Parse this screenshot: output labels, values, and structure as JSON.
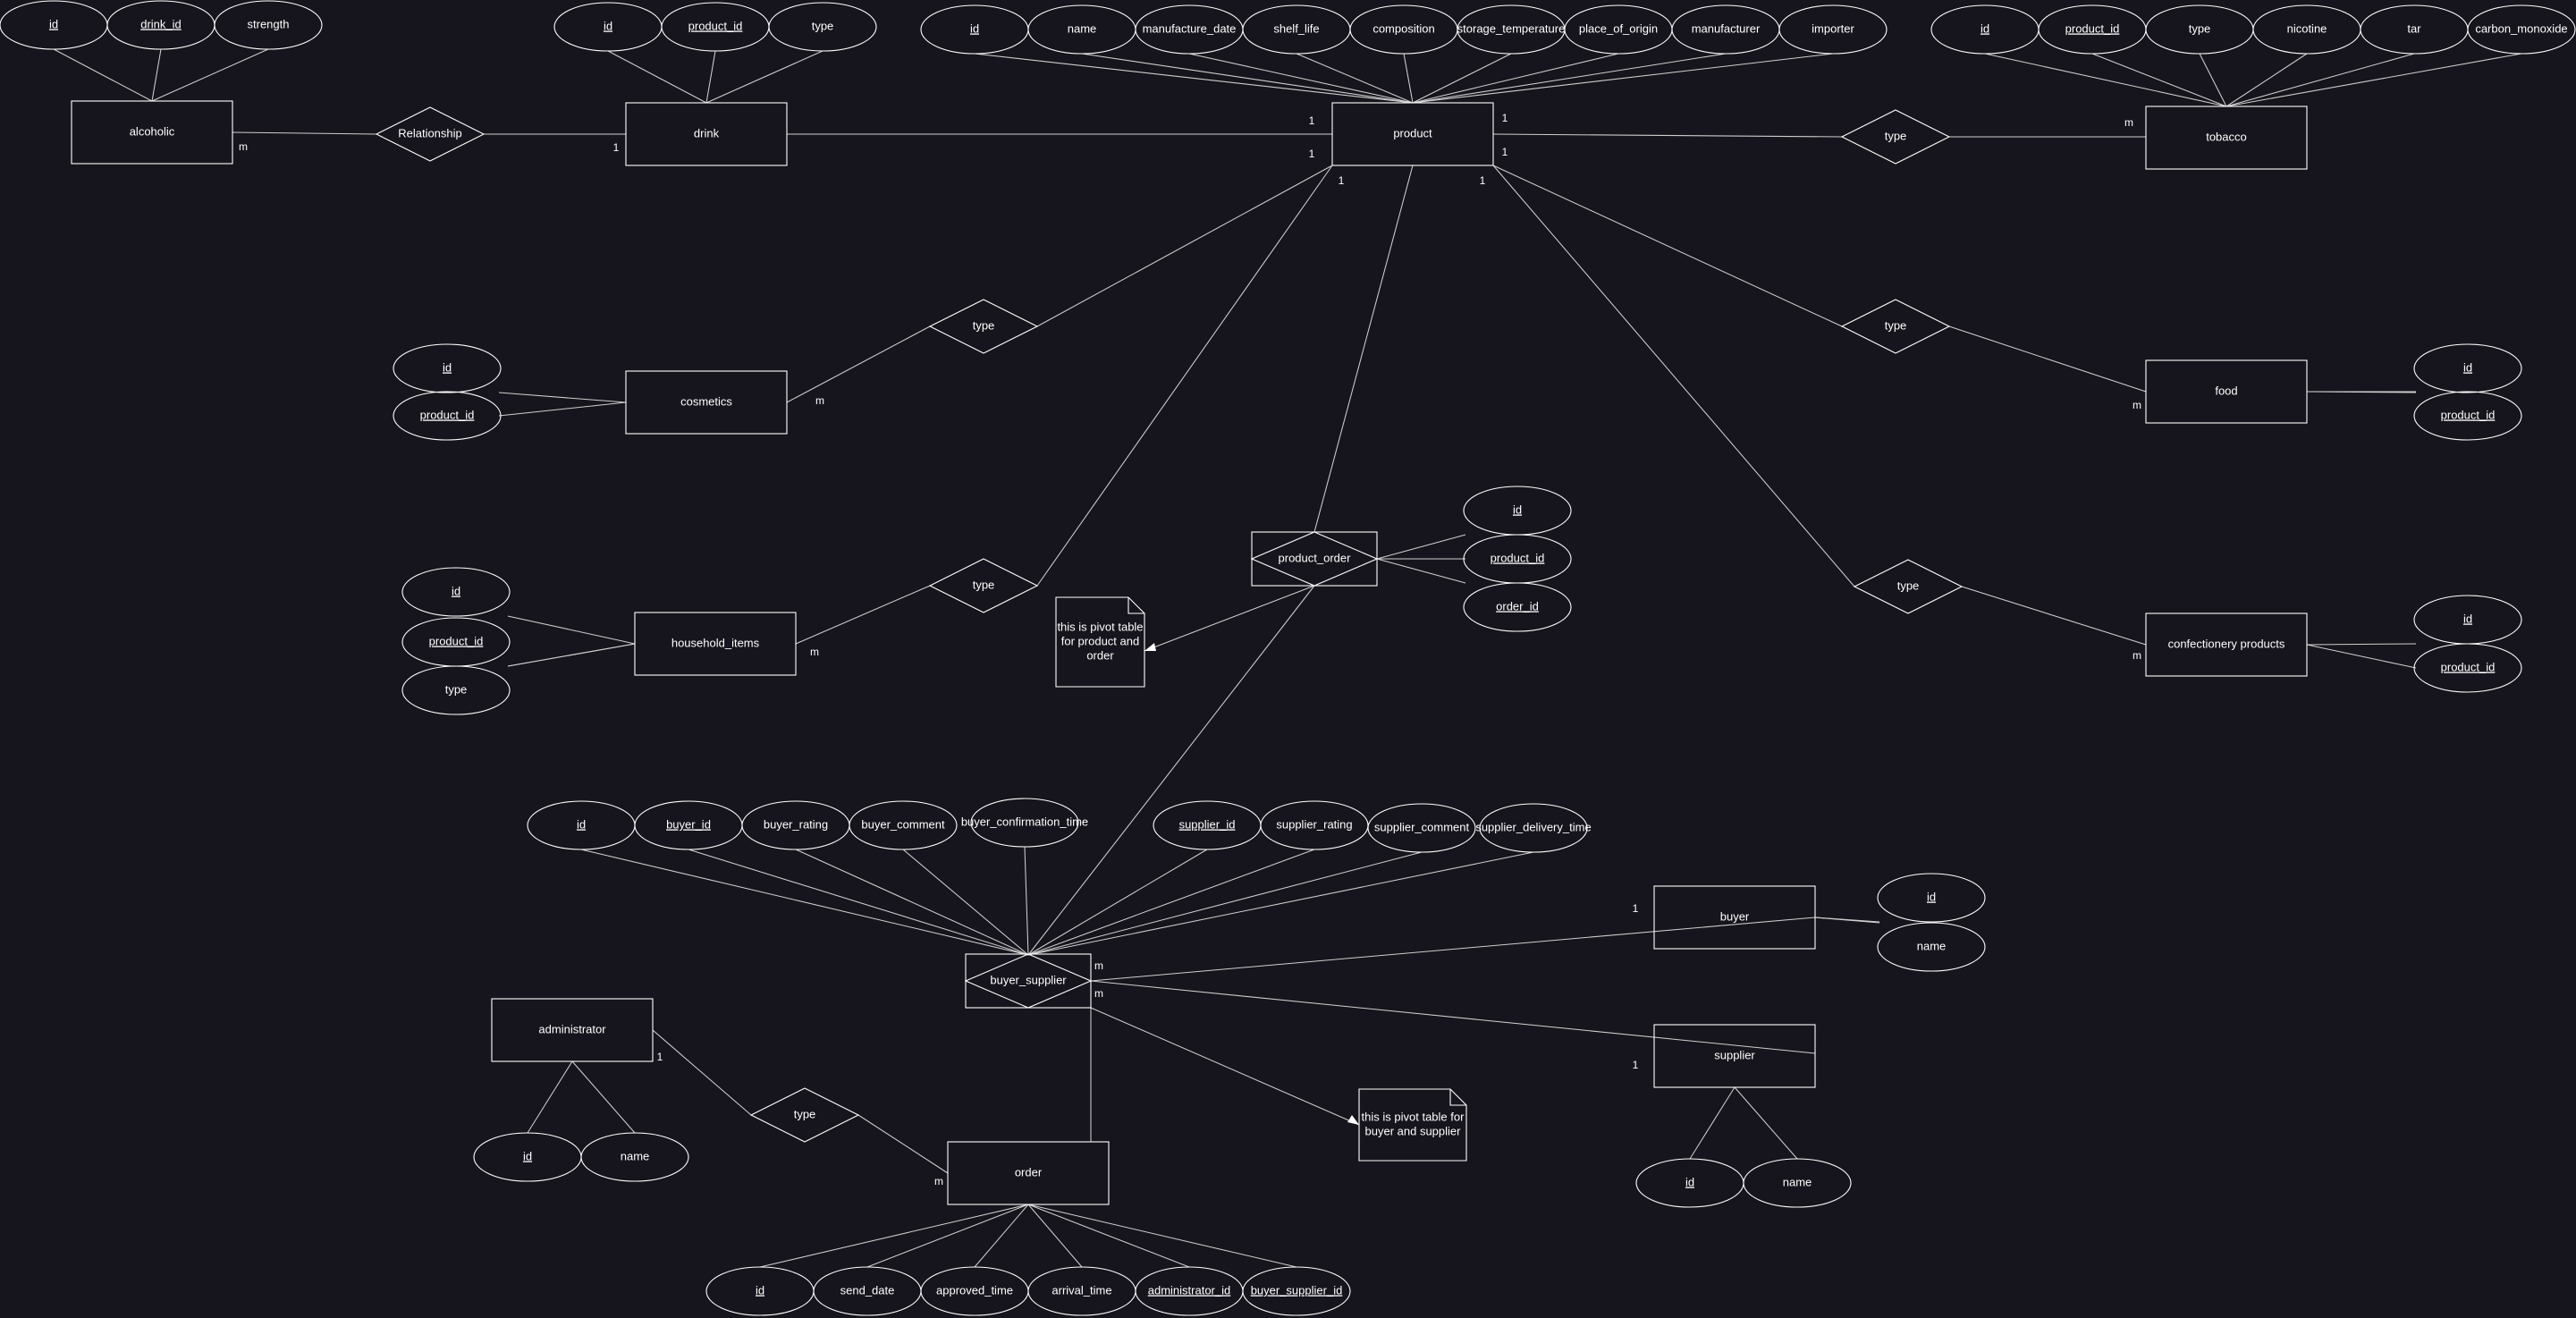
{
  "entities": {
    "alcoholic": "alcoholic",
    "drink": "drink",
    "product": "product",
    "tobacco": "tobacco",
    "cosmetics": "cosmetics",
    "food": "food",
    "household_items": "household_items",
    "confectionery": "confectionery products",
    "administrator": "administrator",
    "buyer": "buyer",
    "supplier": "supplier",
    "order": "order"
  },
  "relationships": {
    "alcoholic_drink": "Relationship",
    "product_tobacco": "type",
    "product_cosmetics": "type",
    "product_food": "type",
    "product_household": "type",
    "product_confectionery": "type",
    "product_order": "product_order",
    "buyer_supplier": "buyer_supplier",
    "admin_order": "type"
  },
  "attributes": {
    "alcoholic": [
      {
        "label": "id",
        "key": true
      },
      {
        "label": "drink_id",
        "key": true
      },
      {
        "label": "strength",
        "key": false
      }
    ],
    "drink": [
      {
        "label": "id",
        "key": true
      },
      {
        "label": "product_id",
        "key": true
      },
      {
        "label": "type",
        "key": false
      }
    ],
    "product": [
      {
        "label": "id",
        "key": true
      },
      {
        "label": "name",
        "key": false
      },
      {
        "label": "manufacture_date",
        "key": false
      },
      {
        "label": "shelf_life",
        "key": false
      },
      {
        "label": "composition",
        "key": false
      },
      {
        "label": "storage_temperature",
        "key": false
      },
      {
        "label": "place_of_origin",
        "key": false
      },
      {
        "label": "manufacturer",
        "key": false
      },
      {
        "label": "importer",
        "key": false
      }
    ],
    "tobacco": [
      {
        "label": "id",
        "key": true
      },
      {
        "label": "product_id",
        "key": true
      },
      {
        "label": "type",
        "key": false
      },
      {
        "label": "nicotine",
        "key": false
      },
      {
        "label": "tar",
        "key": false
      },
      {
        "label": "carbon_monoxide",
        "key": false
      }
    ],
    "cosmetics": [
      {
        "label": "id",
        "key": true
      },
      {
        "label": "product_id",
        "key": true
      }
    ],
    "food": [
      {
        "label": "id",
        "key": true
      },
      {
        "label": "product_id",
        "key": true
      }
    ],
    "household_items": [
      {
        "label": "id",
        "key": true
      },
      {
        "label": "product_id",
        "key": true
      },
      {
        "label": "type",
        "key": false
      }
    ],
    "confectionery": [
      {
        "label": "id",
        "key": true
      },
      {
        "label": "product_id",
        "key": true
      }
    ],
    "product_order": [
      {
        "label": "id",
        "key": true
      },
      {
        "label": "product_id",
        "key": true
      },
      {
        "label": "order_id",
        "key": true
      }
    ],
    "buyer_supplier": [
      {
        "label": "id",
        "key": true
      },
      {
        "label": "buyer_id",
        "key": true
      },
      {
        "label": "buyer_rating",
        "key": false
      },
      {
        "label": "buyer_comment",
        "key": false
      },
      {
        "label": "buyer_confirmation_time",
        "key": false
      },
      {
        "label": "supplier_id",
        "key": true
      },
      {
        "label": "supplier_rating",
        "key": false
      },
      {
        "label": "supplier_comment",
        "key": false
      },
      {
        "label": "supplier_delivery_time",
        "key": false
      }
    ],
    "buyer": [
      {
        "label": "id",
        "key": true
      },
      {
        "label": "name",
        "key": false
      }
    ],
    "supplier": [
      {
        "label": "id",
        "key": true
      },
      {
        "label": "name",
        "key": false
      }
    ],
    "administrator": [
      {
        "label": "id",
        "key": true
      },
      {
        "label": "name",
        "key": false
      }
    ],
    "order": [
      {
        "label": "id",
        "key": true
      },
      {
        "label": "send_date",
        "key": false
      },
      {
        "label": "approved_time",
        "key": false
      },
      {
        "label": "arrival_time",
        "key": false
      },
      {
        "label": "administrator_id",
        "key": true
      },
      {
        "label": "buyer_supplier_id",
        "key": true
      }
    ]
  },
  "notes": {
    "product_order": [
      "this is pivot table",
      "for product and",
      "order"
    ],
    "buyer_supplier": [
      "this is pivot table for",
      "buyer and supplier"
    ]
  },
  "cardinalities": {
    "one": "1",
    "many": "m"
  },
  "colors": {
    "background": "#16141c",
    "stroke": "#ffffff",
    "text": "#ffffff"
  }
}
